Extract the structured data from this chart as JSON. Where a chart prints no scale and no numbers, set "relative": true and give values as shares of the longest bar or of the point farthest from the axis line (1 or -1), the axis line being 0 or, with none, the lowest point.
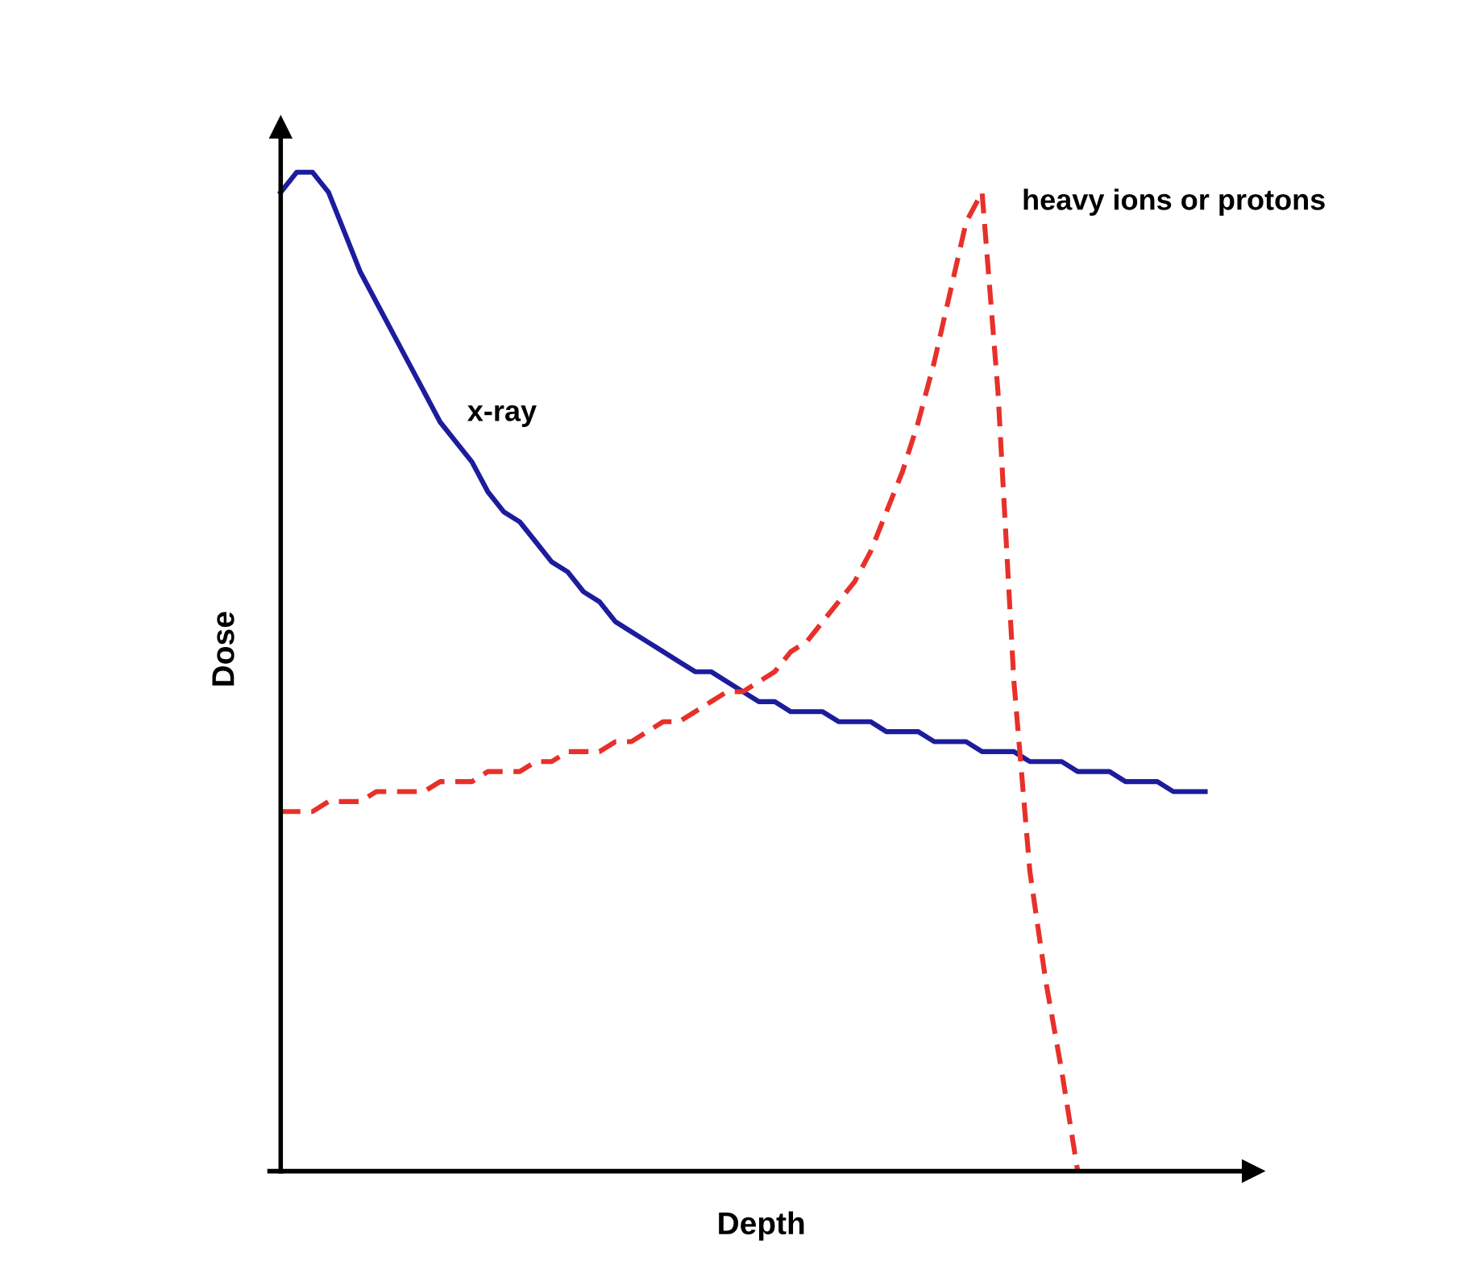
{
  "chart_data": {
    "type": "line",
    "relative": true,
    "xlabel": "Depth",
    "ylabel": "Dose",
    "legend": false,
    "marker": "none",
    "categories": [
      null,
      null,
      null,
      null,
      null,
      null,
      null,
      null,
      null,
      null,
      null,
      null,
      null,
      null,
      null,
      null,
      null,
      null,
      null,
      null,
      null,
      null,
      null,
      null,
      null,
      null,
      null,
      null,
      null,
      null,
      null,
      null,
      null,
      null,
      null,
      null,
      null,
      null,
      null,
      null,
      null,
      null,
      null,
      null,
      null,
      null,
      null,
      null,
      null,
      null,
      null,
      null,
      null,
      null,
      null,
      null,
      null,
      null,
      null
    ],
    "series": [
      {
        "name": "x-ray",
        "color": "#1c1c9c",
        "line_style": "solid",
        "values": [
          0.98,
          1.0,
          1.0,
          0.98,
          0.94,
          0.9,
          0.87,
          0.84,
          0.81,
          0.78,
          0.75,
          0.73,
          0.71,
          0.68,
          0.66,
          0.65,
          0.63,
          0.61,
          0.6,
          0.58,
          0.57,
          0.55,
          0.54,
          0.53,
          0.52,
          0.51,
          0.5,
          0.5,
          0.49,
          0.48,
          0.47,
          0.47,
          0.46,
          0.46,
          0.46,
          0.45,
          0.45,
          0.45,
          0.44,
          0.44,
          0.44,
          0.43,
          0.43,
          0.43,
          0.42,
          0.42,
          0.42,
          0.41,
          0.41,
          0.41,
          0.4,
          0.4,
          0.4,
          0.39,
          0.39,
          0.39,
          0.38,
          0.38,
          0.38
        ]
      },
      {
        "name": "heavy ions or protons",
        "color": "#e8302a",
        "line_style": "dashed",
        "values": [
          0.36,
          0.36,
          0.36,
          0.37,
          0.37,
          0.37,
          0.38,
          0.38,
          0.38,
          0.38,
          0.39,
          0.39,
          0.39,
          0.4,
          0.4,
          0.4,
          0.41,
          0.41,
          0.42,
          0.42,
          0.42,
          0.43,
          0.43,
          0.44,
          0.45,
          0.45,
          0.46,
          0.47,
          0.48,
          0.48,
          0.49,
          0.5,
          0.52,
          0.53,
          0.55,
          0.57,
          0.59,
          0.62,
          0.66,
          0.7,
          0.75,
          0.81,
          0.88,
          0.95,
          0.98,
          0.78,
          0.49,
          0.3,
          0.19,
          0.1,
          0,
          null,
          null,
          null,
          null,
          null,
          null,
          null,
          null
        ]
      }
    ]
  }
}
